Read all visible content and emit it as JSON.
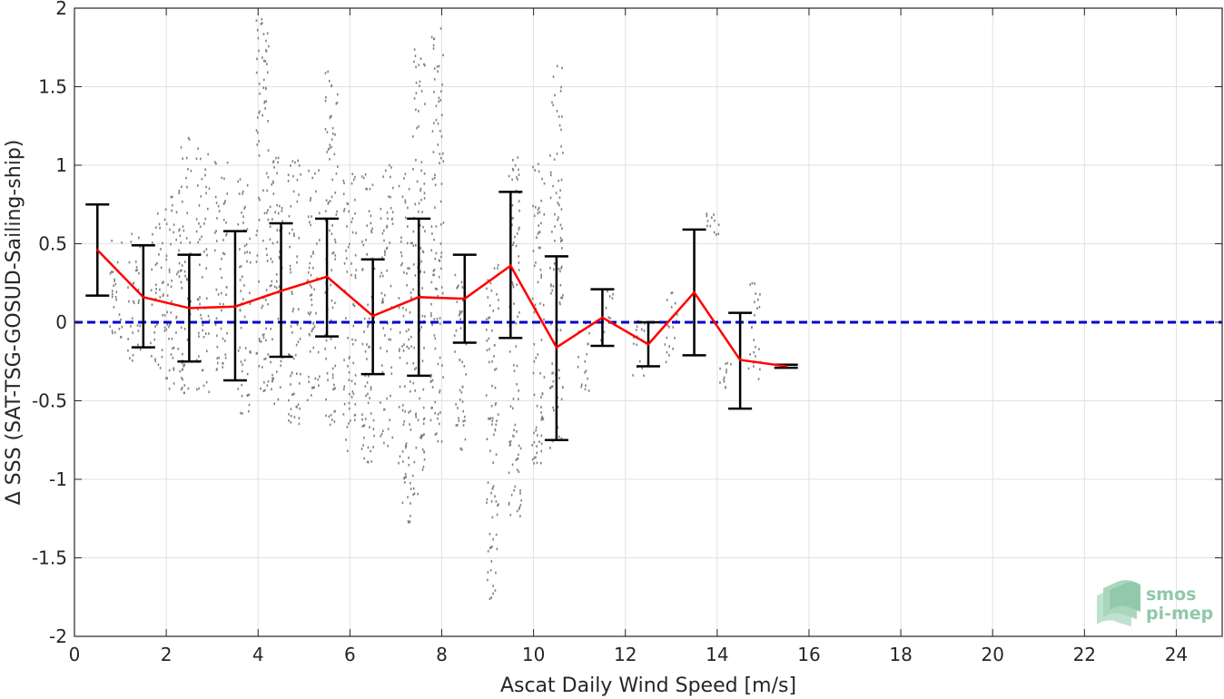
{
  "chart_data": {
    "type": "scatter",
    "xlabel": "Ascat Daily Wind Speed [m/s]",
    "ylabel": "Δ SSS (SAT-TSG-GOSUD-Sailing-ship)",
    "xlim": [
      0,
      25
    ],
    "ylim": [
      -2,
      2
    ],
    "xticks": [
      0,
      2,
      4,
      6,
      8,
      10,
      12,
      14,
      16,
      18,
      20,
      22,
      24
    ],
    "yticks": [
      -2,
      -1.5,
      -1,
      -0.5,
      0,
      0.5,
      1,
      1.5,
      2
    ],
    "xtick_labels": [
      "0",
      "2",
      "4",
      "6",
      "8",
      "10",
      "12",
      "14",
      "16",
      "18",
      "20",
      "22",
      "24"
    ],
    "ytick_labels": [
      "-2",
      "-1.5",
      "-1",
      "-0.5",
      "0",
      "0.5",
      "1",
      "1.5",
      "2"
    ],
    "grid": true,
    "colors": {
      "scatter": "#808080",
      "mean_line": "#ff0000",
      "error_bars": "#000000",
      "zero_line": "#0000cc",
      "logo": "#8fc9a8"
    },
    "zero_line": 0,
    "binned_mean": {
      "x": [
        0.5,
        1.5,
        2.5,
        3.5,
        4.5,
        5.5,
        6.5,
        7.5,
        8.5,
        9.5,
        10.5,
        11.5,
        12.5,
        13.5,
        14.5,
        15.5
      ],
      "mean": [
        0.46,
        0.16,
        0.09,
        0.1,
        0.2,
        0.29,
        0.04,
        0.16,
        0.15,
        0.36,
        -0.16,
        0.03,
        -0.14,
        0.19,
        -0.24,
        -0.28
      ],
      "upper": [
        0.75,
        0.49,
        0.43,
        0.58,
        0.63,
        0.66,
        0.4,
        0.66,
        0.43,
        0.83,
        0.42,
        0.21,
        0.0,
        0.59,
        0.06,
        -0.27
      ],
      "lower": [
        0.17,
        -0.16,
        -0.25,
        -0.37,
        -0.22,
        -0.09,
        -0.33,
        -0.34,
        -0.13,
        -0.1,
        -0.75,
        -0.15,
        -0.28,
        -0.21,
        -0.55,
        -0.29
      ]
    },
    "scatter_clusters": [
      {
        "x": 0.9,
        "y_min": -0.15,
        "y_max": 0.55
      },
      {
        "x": 1.3,
        "y_min": -0.25,
        "y_max": 0.6
      },
      {
        "x": 1.8,
        "y_min": -0.3,
        "y_max": 0.72
      },
      {
        "x": 2.1,
        "y_min": -0.47,
        "y_max": 0.85
      },
      {
        "x": 2.4,
        "y_min": -0.45,
        "y_max": 1.23
      },
      {
        "x": 2.8,
        "y_min": -0.45,
        "y_max": 1.12
      },
      {
        "x": 3.2,
        "y_min": -0.4,
        "y_max": 1.05
      },
      {
        "x": 3.7,
        "y_min": -0.62,
        "y_max": 0.95
      },
      {
        "x": 4.1,
        "y_min": -0.45,
        "y_max": 1.95
      },
      {
        "x": 4.4,
        "y_min": -0.55,
        "y_max": 1.07
      },
      {
        "x": 4.8,
        "y_min": -0.65,
        "y_max": 1.05
      },
      {
        "x": 5.2,
        "y_min": -0.6,
        "y_max": 0.98
      },
      {
        "x": 5.6,
        "y_min": -0.7,
        "y_max": 1.6
      },
      {
        "x": 6.0,
        "y_min": -0.82,
        "y_max": 1.02
      },
      {
        "x": 6.4,
        "y_min": -0.9,
        "y_max": 0.95
      },
      {
        "x": 6.8,
        "y_min": -0.8,
        "y_max": 1.02
      },
      {
        "x": 7.2,
        "y_min": -1.3,
        "y_max": 0.95
      },
      {
        "x": 7.5,
        "y_min": -1.15,
        "y_max": 1.8
      },
      {
        "x": 7.9,
        "y_min": -0.78,
        "y_max": 1.9
      },
      {
        "x": 8.4,
        "y_min": -0.85,
        "y_max": 0.4
      },
      {
        "x": 9.1,
        "y_min": -1.78,
        "y_max": 0.4
      },
      {
        "x": 9.6,
        "y_min": -1.25,
        "y_max": 1.05
      },
      {
        "x": 10.1,
        "y_min": -0.95,
        "y_max": 1.02
      },
      {
        "x": 10.5,
        "y_min": -0.85,
        "y_max": 1.65
      },
      {
        "x": 11.1,
        "y_min": -0.45,
        "y_max": 0.0
      },
      {
        "x": 11.6,
        "y_min": -0.12,
        "y_max": 0.2
      },
      {
        "x": 12.3,
        "y_min": -0.38,
        "y_max": 0.02
      },
      {
        "x": 13.0,
        "y_min": -0.3,
        "y_max": 0.2
      },
      {
        "x": 13.9,
        "y_min": 0.55,
        "y_max": 0.7
      },
      {
        "x": 14.2,
        "y_min": -0.45,
        "y_max": -0.25
      },
      {
        "x": 14.8,
        "y_min": -0.4,
        "y_max": 0.25
      }
    ]
  },
  "logo": {
    "line1": "smos",
    "line2": "pi-mep"
  }
}
